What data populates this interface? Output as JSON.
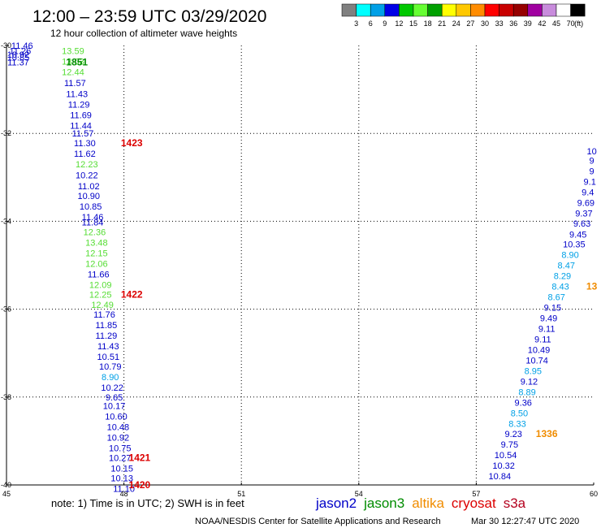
{
  "title": "12:00 – 23:59 UTC 03/29/2020",
  "subtitle": "12 hour collection of altimeter wave heights",
  "note": "note:  1) Time is in UTC;  2) SWH is in feet",
  "credit": "NOAA/NESDIS Center for Satellite Applications and Research",
  "timestamp": "Mar 30 12:27:47 UTC 2020",
  "colors": {
    "jason2": "#0000c8",
    "jason3": "#008c00",
    "altika": "#f08c00",
    "cryosat": "#dc0000",
    "s3a": "#b4001e",
    "light_blue": "#00a0e6",
    "light_green": "#55dd33"
  },
  "satellites": [
    {
      "name": "jason2",
      "color": "#0000c8"
    },
    {
      "name": "jason3",
      "color": "#008c00"
    },
    {
      "name": "altika",
      "color": "#f08c00"
    },
    {
      "name": "cryosat",
      "color": "#dc0000"
    },
    {
      "name": "s3a",
      "color": "#b4001e"
    }
  ],
  "color_key": {
    "unit": "(ft)",
    "labels": [
      "3",
      "6",
      "9",
      "12",
      "15",
      "18",
      "21",
      "24",
      "27",
      "30",
      "33",
      "36",
      "39",
      "42",
      "45",
      "70"
    ],
    "colors": [
      "#808080",
      "#00ffff",
      "#00a0e6",
      "#0000e6",
      "#00c800",
      "#66ff33",
      "#00a000",
      "#ffff00",
      "#ffc800",
      "#ff8c00",
      "#ff0000",
      "#c80000",
      "#960000",
      "#a000a0",
      "#c88cdc",
      "#ffffff",
      "#000000"
    ]
  },
  "chart_data": {
    "type": "scatter",
    "title": "12:00 – 23:59 UTC 03/29/2020",
    "subtitle": "12 hour collection of altimeter wave heights",
    "xlabel": "",
    "ylabel": "",
    "xlim": [
      45,
      60
    ],
    "ylim": [
      -40,
      -30
    ],
    "x_ticks": [
      "45",
      "48",
      "51",
      "54",
      "57",
      "60"
    ],
    "y_ticks": [
      "-30",
      "-32",
      "-34",
      "-36",
      "-38",
      "-40"
    ],
    "grid": true,
    "tracks": [
      {
        "satellite": "jason2",
        "points": [
          {
            "x": 45.4,
            "y": -30.0,
            "v": "11.46",
            "color": "#0000c8"
          },
          {
            "x": 45.35,
            "y": -30.12,
            "v": "11.26",
            "color": "#0000c8"
          },
          {
            "x": 45.3,
            "y": -30.2,
            "v": "10.92",
            "color": "#0000c8"
          },
          {
            "x": 45.3,
            "y": -30.27,
            "v": "10.85",
            "color": "#0000c8"
          },
          {
            "x": 45.3,
            "y": -30.38,
            "v": "11.37",
            "color": "#0000c8"
          },
          {
            "x": 46.7,
            "y": -30.12,
            "v": "13.59",
            "color": "#55dd33"
          },
          {
            "x": 46.7,
            "y": -30.36,
            "v": "13.03",
            "color": "#55dd33"
          },
          {
            "x": 46.7,
            "y": -30.6,
            "v": "12.44",
            "color": "#55dd33"
          },
          {
            "x": 46.75,
            "y": -30.85,
            "v": "11.57",
            "color": "#0000c8"
          },
          {
            "x": 46.8,
            "y": -31.1,
            "v": "11.43",
            "color": "#0000c8"
          },
          {
            "x": 46.85,
            "y": -31.34,
            "v": "11.29",
            "color": "#0000c8"
          },
          {
            "x": 46.9,
            "y": -31.58,
            "v": "11.69",
            "color": "#0000c8"
          },
          {
            "x": 46.9,
            "y": -31.82,
            "v": "11.44",
            "color": "#0000c8"
          },
          {
            "x": 46.95,
            "y": -32.0,
            "v": "11.57",
            "color": "#0000c8"
          },
          {
            "x": 47.0,
            "y": -32.22,
            "v": "11.30",
            "color": "#0000c8"
          },
          {
            "x": 47.0,
            "y": -32.46,
            "v": "11.62",
            "color": "#0000c8"
          },
          {
            "x": 47.05,
            "y": -32.7,
            "v": "12.23",
            "color": "#55dd33"
          },
          {
            "x": 47.05,
            "y": -32.95,
            "v": "10.22",
            "color": "#0000c8"
          },
          {
            "x": 47.1,
            "y": -33.2,
            "v": "11.02",
            "color": "#0000c8"
          },
          {
            "x": 47.1,
            "y": -33.42,
            "v": "10.90",
            "color": "#0000c8"
          },
          {
            "x": 47.15,
            "y": -33.66,
            "v": "10.85",
            "color": "#0000c8"
          },
          {
            "x": 47.2,
            "y": -33.9,
            "v": "11.46",
            "color": "#0000c8"
          },
          {
            "x": 47.2,
            "y": -34.02,
            "v": "11.84",
            "color": "#0000c8"
          },
          {
            "x": 47.25,
            "y": -34.24,
            "v": "12.36",
            "color": "#55dd33"
          },
          {
            "x": 47.3,
            "y": -34.48,
            "v": "13.48",
            "color": "#55dd33"
          },
          {
            "x": 47.3,
            "y": -34.72,
            "v": "12.15",
            "color": "#55dd33"
          },
          {
            "x": 47.3,
            "y": -34.96,
            "v": "12.06",
            "color": "#55dd33"
          },
          {
            "x": 47.35,
            "y": -35.2,
            "v": "11.66",
            "color": "#0000c8"
          },
          {
            "x": 47.4,
            "y": -35.44,
            "v": "12.09",
            "color": "#55dd33"
          },
          {
            "x": 47.4,
            "y": -35.67,
            "v": "12.25",
            "color": "#55dd33"
          },
          {
            "x": 47.45,
            "y": -35.9,
            "v": "12.49",
            "color": "#55dd33"
          },
          {
            "x": 47.5,
            "y": -36.12,
            "v": "11.76",
            "color": "#0000c8"
          },
          {
            "x": 47.55,
            "y": -36.36,
            "v": "11.85",
            "color": "#0000c8"
          },
          {
            "x": 47.55,
            "y": -36.6,
            "v": "11.29",
            "color": "#0000c8"
          },
          {
            "x": 47.6,
            "y": -36.84,
            "v": "11.43",
            "color": "#0000c8"
          },
          {
            "x": 47.6,
            "y": -37.08,
            "v": "10.51",
            "color": "#0000c8"
          },
          {
            "x": 47.65,
            "y": -37.3,
            "v": "10.79",
            "color": "#0000c8"
          },
          {
            "x": 47.65,
            "y": -37.54,
            "v": "8.90",
            "color": "#00a0e6"
          },
          {
            "x": 47.7,
            "y": -37.78,
            "v": "10.22",
            "color": "#0000c8"
          },
          {
            "x": 47.75,
            "y": -38.0,
            "v": "9.65",
            "color": "#0000c8"
          },
          {
            "x": 47.75,
            "y": -38.2,
            "v": "10.17",
            "color": "#0000c8"
          },
          {
            "x": 47.8,
            "y": -38.44,
            "v": "10.60",
            "color": "#0000c8"
          },
          {
            "x": 47.85,
            "y": -38.68,
            "v": "10.48",
            "color": "#0000c8"
          },
          {
            "x": 47.85,
            "y": -38.92,
            "v": "10.92",
            "color": "#0000c8"
          },
          {
            "x": 47.9,
            "y": -39.16,
            "v": "10.75",
            "color": "#0000c8"
          },
          {
            "x": 47.9,
            "y": -39.38,
            "v": "10.27",
            "color": "#0000c8"
          },
          {
            "x": 47.95,
            "y": -39.62,
            "v": "10.15",
            "color": "#0000c8"
          },
          {
            "x": 47.95,
            "y": -39.84,
            "v": "10.13",
            "color": "#0000c8"
          },
          {
            "x": 48.0,
            "y": -40.08,
            "v": "11.10",
            "color": "#0000c8"
          }
        ]
      },
      {
        "satellite": "jason2",
        "points": [
          {
            "x": 59.95,
            "y": -32.4,
            "v": "10",
            "color": "#0000c8"
          },
          {
            "x": 59.95,
            "y": -32.62,
            "v": "9",
            "color": "#0000c8"
          },
          {
            "x": 59.95,
            "y": -32.86,
            "v": "9",
            "color": "#0000c8"
          },
          {
            "x": 59.9,
            "y": -33.1,
            "v": "9.1",
            "color": "#0000c8"
          },
          {
            "x": 59.85,
            "y": -33.34,
            "v": "9.4",
            "color": "#0000c8"
          },
          {
            "x": 59.8,
            "y": -33.58,
            "v": "9.69",
            "color": "#0000c8"
          },
          {
            "x": 59.75,
            "y": -33.82,
            "v": "9.37",
            "color": "#0000c8"
          },
          {
            "x": 59.7,
            "y": -34.05,
            "v": "9.63",
            "color": "#0000c8"
          },
          {
            "x": 59.6,
            "y": -34.3,
            "v": "9.45",
            "color": "#0000c8"
          },
          {
            "x": 59.5,
            "y": -34.52,
            "v": "10.35",
            "color": "#0000c8"
          },
          {
            "x": 59.4,
            "y": -34.76,
            "v": "8.90",
            "color": "#00a0e6"
          },
          {
            "x": 59.3,
            "y": -35.0,
            "v": "8.47",
            "color": "#00a0e6"
          },
          {
            "x": 59.2,
            "y": -35.24,
            "v": "8.29",
            "color": "#00a0e6"
          },
          {
            "x": 59.15,
            "y": -35.48,
            "v": "8.43",
            "color": "#00a0e6"
          },
          {
            "x": 59.05,
            "y": -35.72,
            "v": "8.67",
            "color": "#00a0e6"
          },
          {
            "x": 58.95,
            "y": -35.96,
            "v": "9.15",
            "color": "#0000c8"
          },
          {
            "x": 58.85,
            "y": -36.2,
            "v": "9.49",
            "color": "#0000c8"
          },
          {
            "x": 58.8,
            "y": -36.44,
            "v": "9.11",
            "color": "#0000c8"
          },
          {
            "x": 58.7,
            "y": -36.68,
            "v": "9.11",
            "color": "#0000c8"
          },
          {
            "x": 58.6,
            "y": -36.92,
            "v": "10.49",
            "color": "#0000c8"
          },
          {
            "x": 58.55,
            "y": -37.16,
            "v": "10.74",
            "color": "#0000c8"
          },
          {
            "x": 58.45,
            "y": -37.4,
            "v": "8.95",
            "color": "#00a0e6"
          },
          {
            "x": 58.35,
            "y": -37.64,
            "v": "9.12",
            "color": "#0000c8"
          },
          {
            "x": 58.3,
            "y": -37.88,
            "v": "8.89",
            "color": "#00a0e6"
          },
          {
            "x": 58.2,
            "y": -38.12,
            "v": "9.36",
            "color": "#0000c8"
          },
          {
            "x": 58.1,
            "y": -38.36,
            "v": "8.50",
            "color": "#00a0e6"
          },
          {
            "x": 58.05,
            "y": -38.6,
            "v": "8.33",
            "color": "#00a0e6"
          },
          {
            "x": 57.95,
            "y": -38.84,
            "v": "9.23",
            "color": "#0000c8"
          },
          {
            "x": 57.85,
            "y": -39.08,
            "v": "9.75",
            "color": "#0000c8"
          },
          {
            "x": 57.75,
            "y": -39.32,
            "v": "10.54",
            "color": "#0000c8"
          },
          {
            "x": 57.7,
            "y": -39.56,
            "v": "10.32",
            "color": "#0000c8"
          },
          {
            "x": 57.6,
            "y": -39.8,
            "v": "10.84",
            "color": "#0000c8"
          }
        ]
      }
    ],
    "time_labels": [
      {
        "x": 46.8,
        "y": -30.38,
        "v": "1851",
        "color": "#008c00"
      },
      {
        "x": 48.2,
        "y": -32.22,
        "v": "1423",
        "color": "#dc0000"
      },
      {
        "x": 48.2,
        "y": -35.67,
        "v": "1422",
        "color": "#dc0000"
      },
      {
        "x": 48.4,
        "y": -39.38,
        "v": "1421",
        "color": "#dc0000"
      },
      {
        "x": 48.4,
        "y": -40.0,
        "v": "1420",
        "color": "#dc0000"
      },
      {
        "x": 58.8,
        "y": -38.84,
        "v": "1336",
        "color": "#f08c00"
      },
      {
        "x": 59.95,
        "y": -35.48,
        "v": "13",
        "color": "#f08c00"
      }
    ]
  }
}
